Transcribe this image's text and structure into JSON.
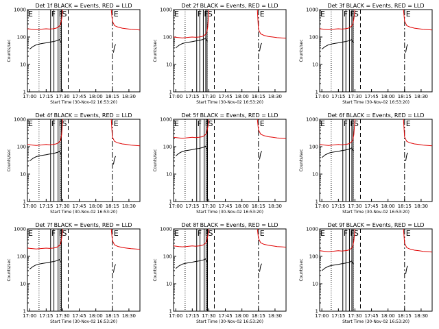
{
  "figure": {
    "panels": [
      {
        "title": "Det 1f BLACK = Events, RED = LLD"
      },
      {
        "title": "Det 2f BLACK = Events, RED = LLD"
      },
      {
        "title": "Det 3f BLACK = Events, RED = LLD"
      },
      {
        "title": "Det 4f BLACK = Events, RED = LLD"
      },
      {
        "title": "Det 5f BLACK = Events, RED = LLD"
      },
      {
        "title": "Det 6f BLACK = Events, RED = LLD"
      },
      {
        "title": "Det 7f BLACK = Events, RED = LLD"
      },
      {
        "title": "Det 8f BLACK = Events, RED = LLD"
      },
      {
        "title": "Det 9f BLACK = Events, RED = LLD"
      }
    ],
    "xlabel": "Start Time (30-Nov-02 16:53:20)",
    "ylabel": "Counts/sec",
    "colors": {
      "events": "#000000",
      "lld": "#e00000"
    },
    "marker_labels": {
      "eclipse": "E",
      "flare": "F",
      "saa": "S"
    }
  },
  "chart_data": {
    "type": "line",
    "grid": false,
    "layout": "3x3",
    "x_range_minutes_after_start": [
      -2,
      100
    ],
    "ylim": [
      1,
      1000
    ],
    "yscale": "log",
    "xticks": [
      "17:00",
      "17:15",
      "17:30",
      "17:45",
      "18:00",
      "18:15",
      "18:30"
    ],
    "yticks": [
      "1",
      "10",
      "100",
      "1000"
    ],
    "series": [
      {
        "name": "Events",
        "color": "#000000",
        "segments": [
          [
            [
              0,
              40
            ],
            [
              3,
              50
            ],
            [
              6,
              58
            ],
            [
              9,
              62
            ],
            [
              12,
              65
            ],
            [
              15,
              68
            ],
            [
              18,
              72
            ],
            [
              21,
              75
            ],
            [
              24,
              80
            ],
            [
              26,
              85
            ],
            [
              27,
              90
            ],
            [
              28,
              75
            ],
            [
              29,
              70
            ]
          ],
          [
            [
              76,
              30
            ],
            [
              77,
              50
            ],
            [
              78,
              60
            ]
          ]
        ]
      },
      {
        "name": "LLD",
        "color": "#e00000",
        "segments": [
          [
            [
              -2,
              200
            ],
            [
              3,
              190
            ],
            [
              6,
              185
            ],
            [
              9,
              190
            ],
            [
              12,
              195
            ],
            [
              15,
              200
            ],
            [
              18,
              195
            ],
            [
              21,
              200
            ],
            [
              24,
              210
            ],
            [
              26,
              230
            ],
            [
              28,
              280
            ],
            [
              29,
              450
            ],
            [
              30,
              1000
            ]
          ],
          [
            [
              74,
              1000
            ],
            [
              75,
              380
            ],
            [
              77,
              260
            ],
            [
              80,
              230
            ],
            [
              84,
              210
            ],
            [
              88,
              200
            ],
            [
              92,
              190
            ],
            [
              96,
              185
            ],
            [
              100,
              180
            ]
          ]
        ]
      }
    ],
    "panels": [
      {
        "detector": "1f",
        "dotted": [
          8.5,
          28.5
        ],
        "flare": [
          19,
          22,
          25.8,
          27.5
        ],
        "saa_edge": 28.8,
        "dashed": 35,
        "dashdot": 75,
        "events_scale": 0.9,
        "lld_scale": 1.0
      },
      {
        "detector": "2f",
        "dotted": [
          8.5,
          28.5
        ],
        "flare": [
          19,
          21.8,
          25,
          27.2
        ],
        "saa_edge": 28.4,
        "dashed": 35,
        "dashdot": 75,
        "events_scale": 1.0,
        "lld_scale": 0.5
      },
      {
        "detector": "3f",
        "dotted": [
          8.5,
          28.5
        ],
        "flare": [
          19,
          21.8,
          25,
          27.2
        ],
        "saa_edge": 28.4,
        "dashed": 35,
        "dashdot": 75,
        "events_scale": 0.9,
        "lld_scale": 1.0
      },
      {
        "detector": "4f",
        "dotted": [
          8.5,
          28.5
        ],
        "flare": [
          19,
          22,
          25.8,
          27.5
        ],
        "saa_edge": 28.8,
        "dashed": 35,
        "dashdot": 75,
        "events_scale": 0.75,
        "lld_scale": 0.6
      },
      {
        "detector": "5f",
        "dotted": [
          8.5,
          28.5
        ],
        "flare": [
          19,
          22,
          25.8,
          27.5
        ],
        "saa_edge": 28.8,
        "dashed": 35,
        "dashdot": 75,
        "events_scale": 1.15,
        "lld_scale": 1.1
      },
      {
        "detector": "6f",
        "dotted": [
          8.5,
          28.5
        ],
        "flare": [
          19,
          21.8,
          25,
          27.2
        ],
        "saa_edge": 28.4,
        "dashed": 35,
        "dashdot": 75,
        "events_scale": 1.0,
        "lld_scale": 0.6
      },
      {
        "detector": "7f",
        "dotted": [
          8.5,
          28.5
        ],
        "flare": [
          19,
          22,
          25.8,
          27.5
        ],
        "saa_edge": 28.8,
        "dashed": 35,
        "dashdot": 75,
        "events_scale": 0.85,
        "lld_scale": 1.0
      },
      {
        "detector": "8f",
        "dotted": [
          8.5,
          28.5
        ],
        "flare": [
          19,
          22,
          25.8,
          27.5
        ],
        "saa_edge": 28.8,
        "dashed": 35,
        "dashdot": 75,
        "events_scale": 0.9,
        "lld_scale": 1.2
      },
      {
        "detector": "9f",
        "dotted": [
          8.5,
          28.5
        ],
        "flare": [
          19,
          21.8,
          25,
          27.2
        ],
        "saa_edge": 28.4,
        "dashed": 35,
        "dashdot": 75,
        "events_scale": 0.75,
        "lld_scale": 0.8
      }
    ]
  }
}
